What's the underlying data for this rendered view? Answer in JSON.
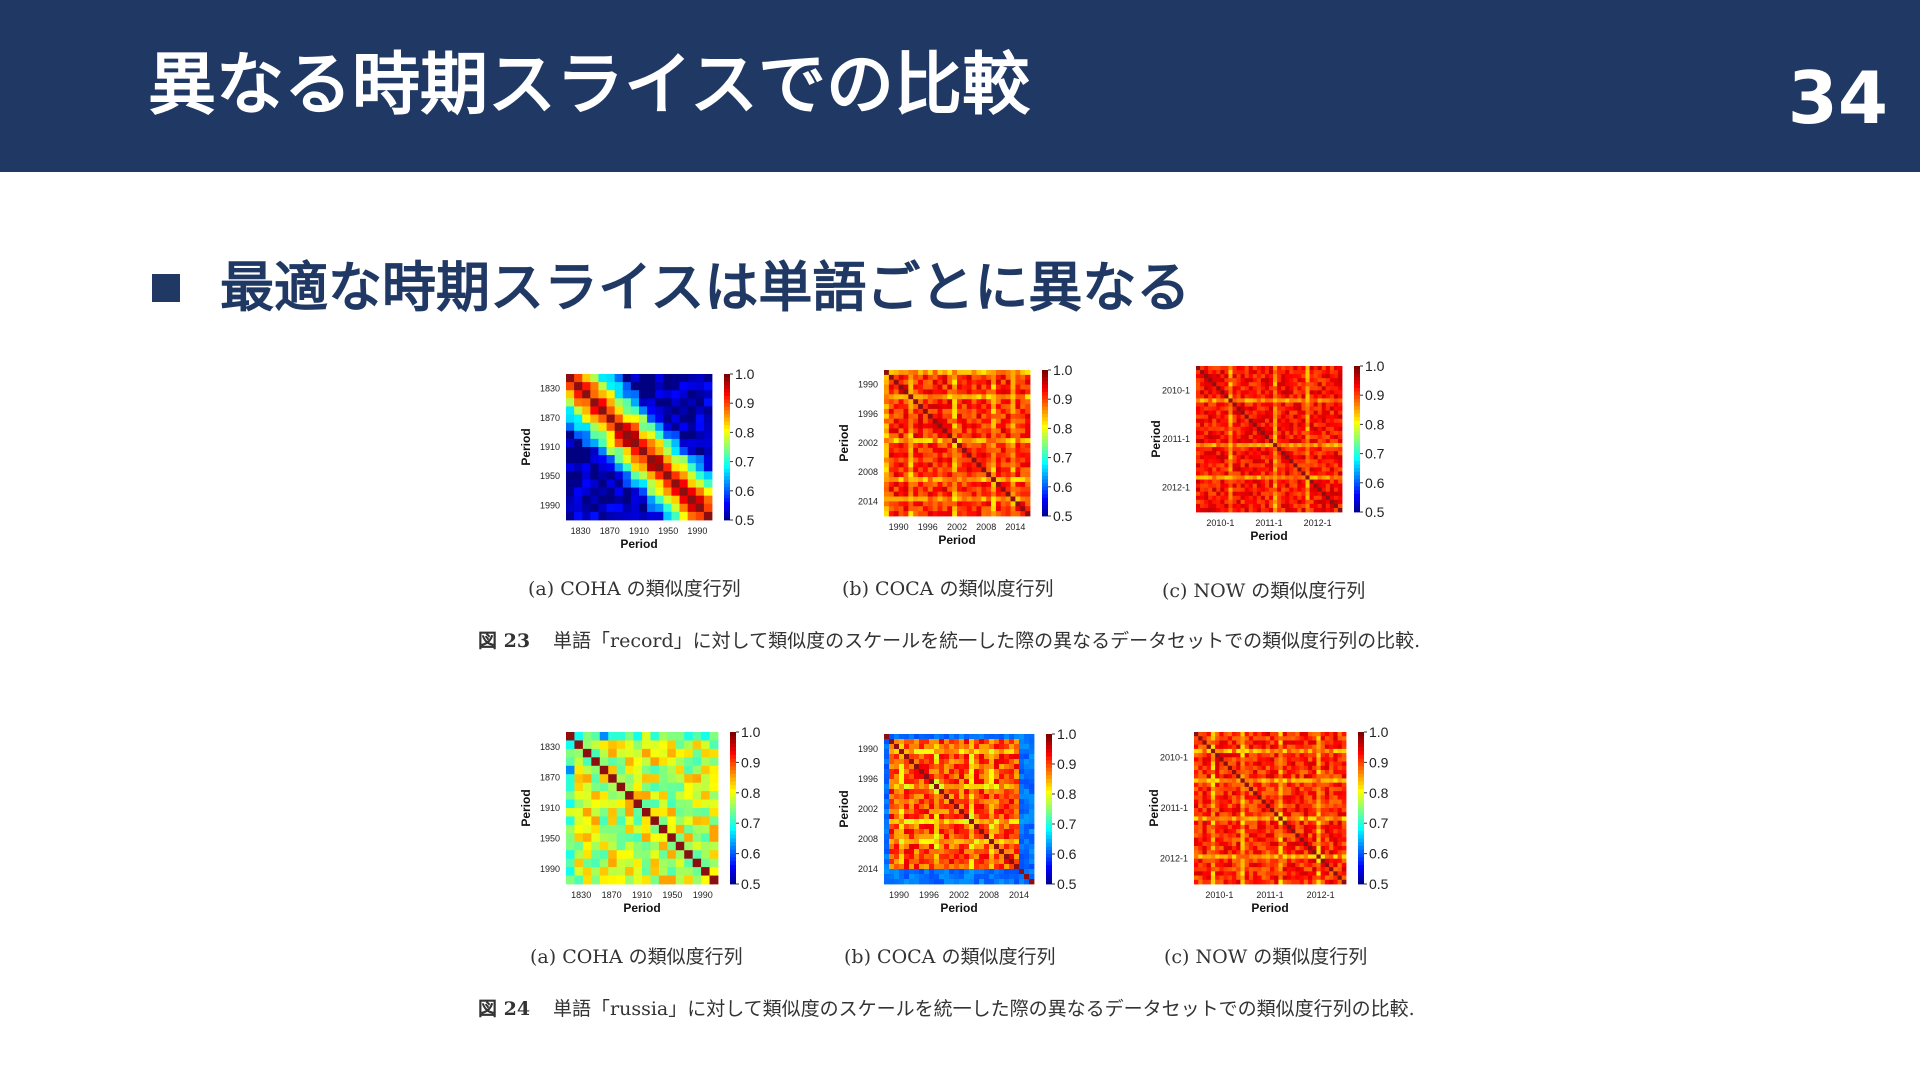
{
  "header": {
    "title": "異なる時期スライスでの比較",
    "page_number": "34"
  },
  "bullet": {
    "text": "最適な時期スライスは単語ごとに異なる"
  },
  "colors": {
    "header_bg": "#203864",
    "accent": "#203864"
  },
  "figures": [
    {
      "label": "図 23",
      "caption": "単語「record」に対して類似度のスケールを統一した際の異なるデータセットでの類似度行列の比較.",
      "subcaptions": [
        "(a) COHA の類似度行列",
        "(b) COCA の類似度行列",
        "(c) NOW の類似度行列"
      ]
    },
    {
      "label": "図 24",
      "caption": "単語「russia」に対して類似度のスケールを統一した際の異なるデータセットでの類似度行列の比較.",
      "subcaptions": [
        "(a) COHA の類似度行列",
        "(b) COCA の類似度行列",
        "(c) NOW の類似度行列"
      ]
    }
  ],
  "chart_data": [
    {
      "type": "heatmap",
      "figure": "図 23",
      "panel": "a",
      "title": "",
      "xlabel": "Period",
      "ylabel": "Period",
      "x_ticks": [
        "1830",
        "1870",
        "1910",
        "1950",
        "1990"
      ],
      "y_ticks": [
        "1830",
        "1870",
        "1910",
        "1950",
        "1990"
      ],
      "value_range": [
        0.5,
        1.0
      ],
      "colorbar_ticks": [
        "1.0",
        "0.9",
        "0.8",
        "0.7",
        "0.6",
        "0.5"
      ],
      "colormap": "jet",
      "grid_size": 18,
      "diagonal": 1.0,
      "pattern": "decay",
      "base": 1.0,
      "slope": 0.07,
      "floor": 0.52,
      "variation": 0.05,
      "seed": 11
    },
    {
      "type": "heatmap",
      "figure": "図 23",
      "panel": "b",
      "title": "",
      "xlabel": "Period",
      "ylabel": "Period",
      "x_ticks": [
        "1990",
        "1996",
        "2002",
        "2008",
        "2014"
      ],
      "y_ticks": [
        "1990",
        "1996",
        "2002",
        "2008",
        "2014"
      ],
      "value_range": [
        0.5,
        1.0
      ],
      "colorbar_ticks": [
        "1.0",
        "0.9",
        "0.8",
        "0.7",
        "0.6",
        "0.5"
      ],
      "colormap": "jet",
      "grid_size": 30,
      "diagonal": 1.0,
      "pattern": "flat",
      "base": 0.92,
      "slope": 0,
      "floor": 0.8,
      "variation": 0.04,
      "seed": 23,
      "light_bands": [
        0,
        5,
        14,
        22,
        26
      ]
    },
    {
      "type": "heatmap",
      "figure": "図 23",
      "panel": "c",
      "title": "",
      "xlabel": "Period",
      "ylabel": "Period",
      "x_ticks": [
        "2010-1",
        "2011-1",
        "2012-1"
      ],
      "y_ticks": [
        "2010-1",
        "2011-1",
        "2012-1"
      ],
      "value_range": [
        0.5,
        1.0
      ],
      "colorbar_ticks": [
        "1.0",
        "0.9",
        "0.8",
        "0.7",
        "0.6",
        "0.5"
      ],
      "colormap": "jet",
      "grid_size": 36,
      "diagonal": 1.0,
      "pattern": "flat",
      "base": 0.93,
      "slope": 0,
      "floor": 0.82,
      "variation": 0.035,
      "seed": 37,
      "light_bands": [
        8,
        19,
        27
      ]
    },
    {
      "type": "heatmap",
      "figure": "図 24",
      "panel": "a",
      "title": "",
      "xlabel": "Period",
      "ylabel": "Period",
      "x_ticks": [
        "1830",
        "1870",
        "1910",
        "1950",
        "1990"
      ],
      "y_ticks": [
        "1830",
        "1870",
        "1910",
        "1950",
        "1990"
      ],
      "value_range": [
        0.5,
        1.0
      ],
      "colorbar_ticks": [
        "1.0",
        "0.9",
        "0.8",
        "0.7",
        "0.6",
        "0.5"
      ],
      "colormap": "jet",
      "grid_size": 18,
      "diagonal": 1.0,
      "pattern": "flat",
      "base": 0.79,
      "slope": 0,
      "floor": 0.68,
      "variation": 0.07,
      "seed": 41,
      "edge_low_rows": [
        0
      ]
    },
    {
      "type": "heatmap",
      "figure": "図 24",
      "panel": "b",
      "title": "",
      "xlabel": "Period",
      "ylabel": "Period",
      "x_ticks": [
        "1990",
        "1996",
        "2002",
        "2008",
        "2014"
      ],
      "y_ticks": [
        "1990",
        "1996",
        "2002",
        "2008",
        "2014"
      ],
      "value_range": [
        0.5,
        1.0
      ],
      "colorbar_ticks": [
        "1.0",
        "0.9",
        "0.8",
        "0.7",
        "0.6",
        "0.5"
      ],
      "colormap": "jet",
      "grid_size": 30,
      "diagonal": 1.0,
      "pattern": "flat",
      "base": 0.9,
      "slope": 0,
      "floor": 0.78,
      "variation": 0.05,
      "seed": 53,
      "light_bands": [
        3,
        10,
        17,
        21
      ],
      "edge_low_rows": [
        0,
        27,
        28,
        29
      ],
      "edge_low_value": 0.62
    },
    {
      "type": "heatmap",
      "figure": "図 24",
      "panel": "c",
      "title": "",
      "xlabel": "Period",
      "ylabel": "Period",
      "x_ticks": [
        "2010-1",
        "2011-1",
        "2012-1"
      ],
      "y_ticks": [
        "2010-1",
        "2011-1",
        "2012-1"
      ],
      "value_range": [
        0.5,
        1.0
      ],
      "colorbar_ticks": [
        "1.0",
        "0.9",
        "0.8",
        "0.7",
        "0.6",
        "0.5"
      ],
      "colormap": "jet",
      "grid_size": 36,
      "diagonal": 1.0,
      "pattern": "flat",
      "base": 0.92,
      "slope": 0,
      "floor": 0.8,
      "variation": 0.04,
      "seed": 67,
      "light_bands": [
        4,
        11,
        20,
        29
      ]
    }
  ]
}
